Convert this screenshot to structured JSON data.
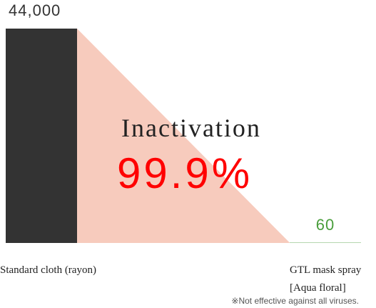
{
  "chart_data": {
    "type": "bar",
    "categories": [
      "Standard cloth (rayon)",
      "GTL mask spray [Aqua floral]"
    ],
    "series": [
      {
        "values": [
          44000,
          60
        ],
        "value_labels": [
          "44,000",
          "60"
        ],
        "colors": [
          "#333333",
          "#4a9e3c"
        ],
        "label_colors": [
          "#333333",
          "#4a9e3c"
        ]
      }
    ],
    "ylim": [
      0,
      44000
    ],
    "annotations": [
      "Inactivation",
      "99.9%"
    ],
    "footnote": "※Not effective against all viruses."
  }
}
